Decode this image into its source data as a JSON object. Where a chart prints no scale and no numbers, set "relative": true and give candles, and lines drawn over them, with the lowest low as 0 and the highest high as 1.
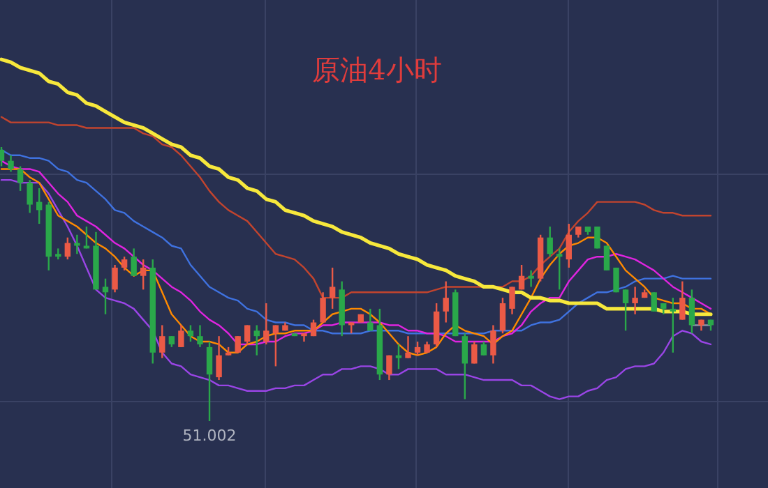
{
  "chart_data": {
    "type": "candlestick",
    "title": "原油4小时",
    "relative": true,
    "grid": true,
    "categories": [
      null,
      null,
      null,
      null,
      null,
      null,
      null,
      null,
      null,
      null,
      null,
      null,
      null,
      null,
      null,
      null,
      null,
      null,
      null,
      null,
      null,
      null,
      null,
      null,
      null,
      null,
      null,
      null,
      null,
      null,
      null,
      null,
      null,
      null,
      null,
      null,
      null,
      null,
      null,
      null,
      null,
      null,
      null,
      null,
      null,
      null,
      null,
      null,
      null,
      null,
      null,
      null,
      null,
      null,
      null,
      null,
      null,
      null,
      null,
      null,
      null,
      null,
      null,
      null,
      null,
      null,
      null,
      null,
      null,
      null,
      null,
      null,
      null,
      null,
      null,
      null
    ],
    "ohlc": [
      [
        0.99,
        1,
        0.93,
        0.95
      ],
      [
        0.95,
        0.97,
        0.91,
        0.92
      ],
      [
        0.92,
        0.93,
        0.84,
        0.87
      ],
      [
        0.87,
        0.88,
        0.76,
        0.79
      ],
      [
        0.8,
        0.85,
        0.72,
        0.77
      ],
      [
        0.79,
        0.8,
        0.55,
        0.6
      ],
      [
        0.61,
        0.63,
        0.59,
        0.6
      ],
      [
        0.6,
        0.67,
        0.59,
        0.65
      ],
      [
        0.65,
        0.68,
        0.61,
        0.64
      ],
      [
        0.64,
        0.71,
        0.63,
        0.63
      ],
      [
        0.64,
        0.69,
        0.48,
        0.48
      ],
      [
        0.49,
        0.52,
        0.39,
        0.47
      ],
      [
        0.48,
        0.57,
        0.47,
        0.56
      ],
      [
        0.56,
        0.6,
        0.55,
        0.59
      ],
      [
        0.6,
        0.63,
        0.53,
        0.53
      ],
      [
        0.53,
        0.59,
        0.48,
        0.56
      ],
      [
        0.56,
        0.59,
        0.21,
        0.25
      ],
      [
        0.25,
        0.35,
        0.23,
        0.31
      ],
      [
        0.31,
        0.31,
        0.27,
        0.28
      ],
      [
        0.27,
        0.35,
        0.27,
        0.33
      ],
      [
        0.33,
        0.35,
        0.29,
        0.31
      ],
      [
        0.31,
        0.35,
        0.27,
        0.28
      ],
      [
        0.27,
        0.29,
        0,
        0.17
      ],
      [
        0.16,
        0.31,
        0.15,
        0.24
      ],
      [
        0.24,
        0.27,
        0.24,
        0.25
      ],
      [
        0.25,
        0.31,
        0.25,
        0.31
      ],
      [
        0.29,
        0.35,
        0.28,
        0.35
      ],
      [
        0.33,
        0.35,
        0.24,
        0.31
      ],
      [
        0.29,
        0.43,
        0.28,
        0.33
      ],
      [
        0.32,
        0.35,
        0.2,
        0.35
      ],
      [
        0.33,
        0.36,
        0.33,
        0.35
      ],
      [
        0.32,
        0.32,
        0.31,
        0.31
      ],
      [
        0.31,
        0.32,
        0.29,
        0.32
      ],
      [
        0.31,
        0.37,
        0.31,
        0.36
      ],
      [
        0.36,
        0.47,
        0.36,
        0.45
      ],
      [
        0.45,
        0.56,
        0.41,
        0.49
      ],
      [
        0.48,
        0.51,
        0.31,
        0.35
      ],
      [
        0.35,
        0.36,
        0.32,
        0.36
      ],
      [
        0.36,
        0.39,
        0.36,
        0.39
      ],
      [
        0.36,
        0.41,
        0.33,
        0.33
      ],
      [
        0.35,
        0.41,
        0.15,
        0.17
      ],
      [
        0.17,
        0.24,
        0.15,
        0.24
      ],
      [
        0.24,
        0.28,
        0.19,
        0.23
      ],
      [
        0.23,
        0.31,
        0.23,
        0.25
      ],
      [
        0.25,
        0.29,
        0.24,
        0.27
      ],
      [
        0.25,
        0.29,
        0.25,
        0.28
      ],
      [
        0.28,
        0.43,
        0.27,
        0.4
      ],
      [
        0.4,
        0.51,
        0.36,
        0.45
      ],
      [
        0.47,
        0.48,
        0.31,
        0.31
      ],
      [
        0.31,
        0.32,
        0.08,
        0.21
      ],
      [
        0.21,
        0.29,
        0.21,
        0.28
      ],
      [
        0.28,
        0.29,
        0.24,
        0.24
      ],
      [
        0.24,
        0.35,
        0.21,
        0.33
      ],
      [
        0.33,
        0.45,
        0.32,
        0.43
      ],
      [
        0.41,
        0.49,
        0.39,
        0.49
      ],
      [
        0.48,
        0.57,
        0.48,
        0.53
      ],
      [
        0.53,
        0.55,
        0.49,
        0.52
      ],
      [
        0.52,
        0.68,
        0.51,
        0.67
      ],
      [
        0.67,
        0.71,
        0.6,
        0.61
      ],
      [
        0.61,
        0.63,
        0.48,
        0.6
      ],
      [
        0.59,
        0.72,
        0.56,
        0.68
      ],
      [
        0.68,
        0.71,
        0.67,
        0.71
      ],
      [
        0.71,
        0.71,
        0.68,
        0.69
      ],
      [
        0.71,
        0.71,
        0.63,
        0.63
      ],
      [
        0.64,
        0.64,
        0.55,
        0.55
      ],
      [
        0.56,
        0.56,
        0.47,
        0.47
      ],
      [
        0.48,
        0.48,
        0.33,
        0.43
      ],
      [
        0.43,
        0.49,
        0.39,
        0.45
      ],
      [
        0.45,
        0.48,
        0.45,
        0.47
      ],
      [
        0.47,
        0.47,
        0.4,
        0.4
      ],
      [
        0.43,
        0.43,
        0.39,
        0.41
      ],
      [
        0.41,
        0.45,
        0.25,
        0.4
      ],
      [
        0.37,
        0.51,
        0.37,
        0.45
      ],
      [
        0.45,
        0.48,
        0.32,
        0.35
      ],
      [
        0.35,
        0.37,
        0.33,
        0.37
      ],
      [
        0.37,
        0.37,
        0.33,
        0.35
      ]
    ],
    "colors": [
      "#2aa84a",
      "#2aa84a",
      "#2aa84a",
      "#2aa84a",
      "#2aa84a",
      "#2aa84a",
      "#2aa84a",
      "#eb5a46",
      "#2aa84a",
      "#2aa84a",
      "#2aa84a",
      "#2aa84a",
      "#eb5a46",
      "#eb5a46",
      "#2aa84a",
      "#eb5a46",
      "#2aa84a",
      "#eb5a46",
      "#2aa84a",
      "#eb5a46",
      "#2aa84a",
      "#2aa84a",
      "#2aa84a",
      "#eb5a46",
      "#eb5a46",
      "#eb5a46",
      "#eb5a46",
      "#2aa84a",
      "#eb5a46",
      "#eb5a46",
      "#eb5a46",
      "#2aa84a",
      "#eb5a46",
      "#eb5a46",
      "#eb5a46",
      "#eb5a46",
      "#2aa84a",
      "#eb5a46",
      "#eb5a46",
      "#2aa84a",
      "#2aa84a",
      "#eb5a46",
      "#2aa84a",
      "#eb5a46",
      "#eb5a46",
      "#eb5a46",
      "#eb5a46",
      "#eb5a46",
      "#2aa84a",
      "#2aa84a",
      "#eb5a46",
      "#2aa84a",
      "#eb5a46",
      "#eb5a46",
      "#eb5a46",
      "#eb5a46",
      "#2aa84a",
      "#eb5a46",
      "#2aa84a",
      "#2aa84a",
      "#eb5a46",
      "#eb5a46",
      "#2aa84a",
      "#2aa84a",
      "#2aa84a",
      "#2aa84a",
      "#2aa84a",
      "#eb5a46",
      "#eb5a46",
      "#2aa84a",
      "#2aa84a",
      "#2aa84a",
      "#eb5a46",
      "#2aa84a",
      "#eb5a46",
      "#2aa84a"
    ],
    "series": [
      {
        "type": "line",
        "color": "#c2442e",
        "values": [
          1.11,
          1.09,
          1.09,
          1.09,
          1.09,
          1.09,
          1.08,
          1.08,
          1.08,
          1.07,
          1.07,
          1.07,
          1.07,
          1.07,
          1.07,
          1.05,
          1.04,
          1.01,
          1,
          0.97,
          0.93,
          0.89,
          0.84,
          0.8,
          0.77,
          0.75,
          0.73,
          0.69,
          0.65,
          0.61,
          0.6,
          0.59,
          0.56,
          0.52,
          0.45,
          0.45,
          0.45,
          0.47,
          0.47,
          0.47,
          0.47,
          0.47,
          0.47,
          0.47,
          0.47,
          0.47,
          0.48,
          0.49,
          0.49,
          0.49,
          0.49,
          0.49,
          0.49,
          0.49,
          0.51,
          0.51,
          0.53,
          0.57,
          0.6,
          0.63,
          0.69,
          0.73,
          0.76,
          0.8,
          0.8,
          0.8,
          0.8,
          0.8,
          0.79,
          0.77,
          0.76,
          0.76,
          0.75,
          0.75,
          0.75,
          0.75
        ]
      },
      {
        "type": "line",
        "color": "#3f72e0",
        "values": [
          0.99,
          0.97,
          0.97,
          0.96,
          0.96,
          0.95,
          0.92,
          0.91,
          0.88,
          0.87,
          0.84,
          0.81,
          0.77,
          0.76,
          0.73,
          0.71,
          0.69,
          0.67,
          0.64,
          0.63,
          0.57,
          0.53,
          0.49,
          0.47,
          0.45,
          0.44,
          0.41,
          0.4,
          0.37,
          0.36,
          0.36,
          0.35,
          0.35,
          0.33,
          0.33,
          0.32,
          0.32,
          0.32,
          0.32,
          0.33,
          0.33,
          0.33,
          0.33,
          0.32,
          0.32,
          0.32,
          0.32,
          0.32,
          0.32,
          0.32,
          0.32,
          0.32,
          0.33,
          0.33,
          0.33,
          0.33,
          0.35,
          0.36,
          0.36,
          0.37,
          0.4,
          0.43,
          0.45,
          0.47,
          0.47,
          0.48,
          0.49,
          0.51,
          0.52,
          0.52,
          0.52,
          0.53,
          0.52,
          0.52,
          0.52,
          0.52
        ]
      },
      {
        "type": "line",
        "color": "#9a45e6",
        "values": [
          0.88,
          0.88,
          0.87,
          0.87,
          0.87,
          0.83,
          0.77,
          0.71,
          0.64,
          0.56,
          0.48,
          0.45,
          0.44,
          0.43,
          0.41,
          0.37,
          0.33,
          0.25,
          0.21,
          0.2,
          0.17,
          0.16,
          0.15,
          0.13,
          0.13,
          0.12,
          0.11,
          0.11,
          0.11,
          0.12,
          0.12,
          0.13,
          0.13,
          0.15,
          0.17,
          0.17,
          0.19,
          0.19,
          0.2,
          0.2,
          0.19,
          0.17,
          0.17,
          0.19,
          0.19,
          0.19,
          0.19,
          0.17,
          0.17,
          0.17,
          0.16,
          0.15,
          0.15,
          0.15,
          0.15,
          0.13,
          0.13,
          0.11,
          0.09,
          0.08,
          0.09,
          0.09,
          0.11,
          0.12,
          0.15,
          0.16,
          0.19,
          0.2,
          0.2,
          0.21,
          0.25,
          0.31,
          0.33,
          0.32,
          0.29,
          0.28
        ]
      },
      {
        "type": "line",
        "color": "#e024e0",
        "values": [
          0.95,
          0.93,
          0.92,
          0.92,
          0.91,
          0.87,
          0.83,
          0.8,
          0.75,
          0.73,
          0.71,
          0.68,
          0.65,
          0.63,
          0.6,
          0.57,
          0.55,
          0.52,
          0.49,
          0.47,
          0.44,
          0.4,
          0.37,
          0.35,
          0.32,
          0.28,
          0.28,
          0.28,
          0.29,
          0.29,
          0.31,
          0.32,
          0.32,
          0.33,
          0.35,
          0.35,
          0.36,
          0.36,
          0.36,
          0.36,
          0.36,
          0.35,
          0.35,
          0.33,
          0.33,
          0.32,
          0.32,
          0.31,
          0.29,
          0.29,
          0.29,
          0.29,
          0.29,
          0.31,
          0.32,
          0.35,
          0.4,
          0.43,
          0.45,
          0.45,
          0.51,
          0.55,
          0.59,
          0.6,
          0.6,
          0.61,
          0.6,
          0.59,
          0.57,
          0.55,
          0.52,
          0.49,
          0.47,
          0.45,
          0.43,
          0.41
        ]
      },
      {
        "type": "line",
        "color": "#ff8a00",
        "values": [
          0.92,
          0.92,
          0.92,
          0.89,
          0.87,
          0.81,
          0.75,
          0.73,
          0.71,
          0.68,
          0.65,
          0.63,
          0.6,
          0.56,
          0.53,
          0.55,
          0.55,
          0.47,
          0.39,
          0.35,
          0.31,
          0.29,
          0.29,
          0.28,
          0.25,
          0.25,
          0.28,
          0.29,
          0.31,
          0.32,
          0.32,
          0.33,
          0.33,
          0.33,
          0.36,
          0.39,
          0.4,
          0.41,
          0.41,
          0.39,
          0.36,
          0.32,
          0.28,
          0.25,
          0.24,
          0.25,
          0.27,
          0.32,
          0.35,
          0.33,
          0.32,
          0.31,
          0.28,
          0.31,
          0.33,
          0.39,
          0.45,
          0.52,
          0.57,
          0.61,
          0.64,
          0.65,
          0.67,
          0.67,
          0.65,
          0.6,
          0.55,
          0.52,
          0.49,
          0.45,
          0.44,
          0.43,
          0.43,
          0.41,
          0.41,
          0.39
        ]
      },
      {
        "type": "line",
        "color": "#8d93a8",
        "values": [
          null,
          null,
          null,
          null,
          null,
          null,
          null,
          null,
          null,
          null,
          null,
          null,
          null,
          null,
          null,
          null,
          null,
          null,
          null,
          null,
          null,
          null,
          null,
          null,
          null,
          null,
          null,
          null,
          null,
          null,
          null,
          null,
          null,
          null,
          null,
          null,
          null,
          null,
          null,
          null,
          null,
          null,
          null,
          null,
          null,
          null,
          null,
          null,
          null,
          null,
          null,
          null,
          null,
          null,
          null,
          null,
          null,
          null,
          null,
          null,
          null,
          null,
          null,
          null,
          null,
          null,
          null,
          null,
          null,
          null,
          null,
          null,
          null,
          0.35,
          0.35,
          0.35
        ]
      },
      {
        "type": "line",
        "color": "#f7e83c",
        "values": [
          1.32,
          1.31,
          1.29,
          1.28,
          1.27,
          1.24,
          1.23,
          1.2,
          1.19,
          1.16,
          1.15,
          1.13,
          1.11,
          1.09,
          1.08,
          1.07,
          1.05,
          1.03,
          1.01,
          1,
          0.97,
          0.96,
          0.93,
          0.92,
          0.89,
          0.88,
          0.85,
          0.84,
          0.81,
          0.8,
          0.77,
          0.76,
          0.75,
          0.73,
          0.72,
          0.71,
          0.69,
          0.68,
          0.67,
          0.65,
          0.64,
          0.63,
          0.61,
          0.6,
          0.59,
          0.57,
          0.56,
          0.55,
          0.53,
          0.52,
          0.51,
          0.49,
          0.49,
          0.48,
          0.47,
          0.47,
          0.45,
          0.45,
          0.44,
          0.44,
          0.43,
          0.43,
          0.43,
          0.43,
          0.41,
          0.41,
          0.41,
          0.41,
          0.41,
          0.41,
          0.4,
          0.4,
          0.4,
          0.39,
          0.39,
          0.39
        ]
      }
    ],
    "annotations": [
      {
        "text": "51.002",
        "y": 0
      }
    ]
  }
}
